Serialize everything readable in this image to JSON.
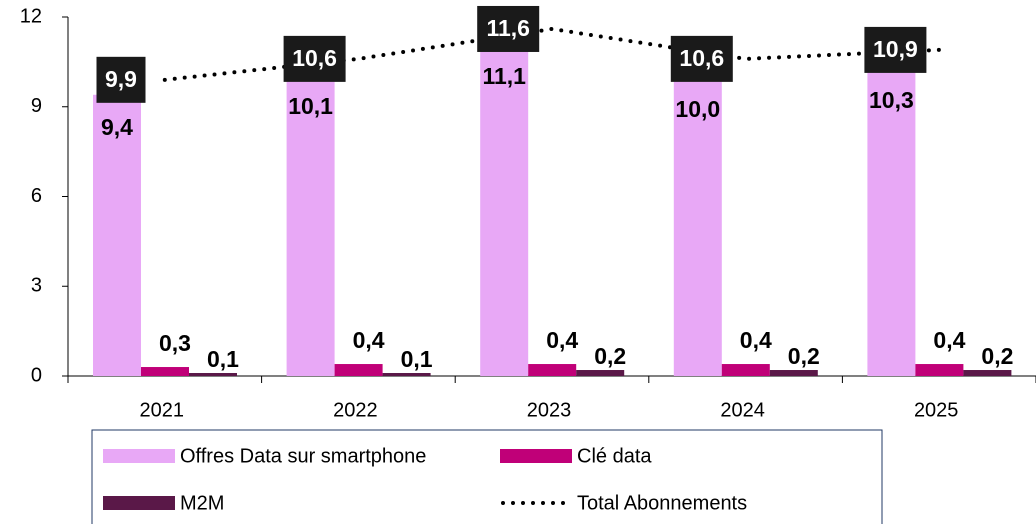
{
  "chart_data": {
    "type": "bar",
    "categories": [
      "2021",
      "2022",
      "2023",
      "2024",
      "2025"
    ],
    "ylim": [
      0,
      12
    ],
    "yticks": [
      0,
      3,
      6,
      9,
      12
    ],
    "series": [
      {
        "name": "Offres Data sur smartphone",
        "color": "#e8a8f6",
        "values": [
          9.4,
          10.1,
          11.1,
          10.0,
          10.3
        ],
        "value_labels": [
          "9,4",
          "10,1",
          "11,1",
          "10,0",
          "10,3"
        ]
      },
      {
        "name": "Clé data",
        "color": "#c00078",
        "values": [
          0.3,
          0.4,
          0.4,
          0.4,
          0.4
        ],
        "value_labels": [
          "0,3",
          "0,4",
          "0,4",
          "0,4",
          "0,4"
        ]
      },
      {
        "name": "M2M",
        "color": "#5a1848",
        "values": [
          0.1,
          0.1,
          0.2,
          0.2,
          0.2
        ],
        "value_labels": [
          "0,1",
          "0,1",
          "0,2",
          "0,2",
          "0,2"
        ]
      },
      {
        "name": "Total Abonnements",
        "type": "line",
        "color": "#000000",
        "values": [
          9.9,
          10.6,
          11.6,
          10.6,
          10.9
        ],
        "value_labels": [
          "9,9",
          "10,6",
          "11,6",
          "10,6",
          "10,9"
        ]
      }
    ]
  }
}
